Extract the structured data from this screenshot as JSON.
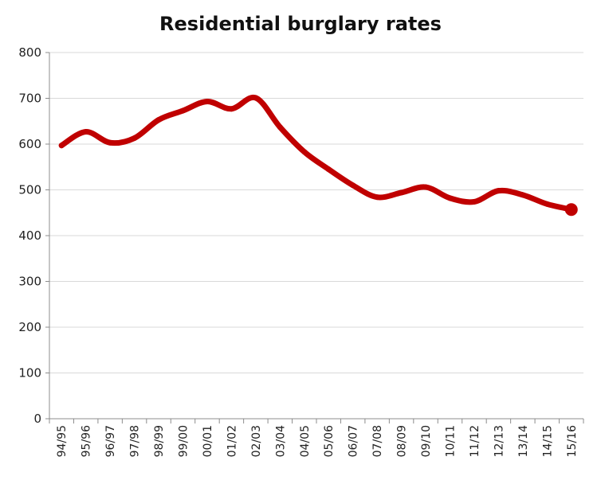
{
  "chart_data": {
    "type": "line",
    "title": "Residential burglary rates",
    "xlabel": "",
    "ylabel": "",
    "ylim": [
      0,
      800
    ],
    "yticks": [
      0,
      100,
      200,
      300,
      400,
      500,
      600,
      700,
      800
    ],
    "grid": true,
    "legend": "none",
    "line_color": "#c00000",
    "categories": [
      "94/95",
      "95/96",
      "96/97",
      "97/98",
      "98/99",
      "99/00",
      "00/01",
      "01/02",
      "02/03",
      "03/04",
      "04/05",
      "05/06",
      "06/07",
      "07/08",
      "08/09",
      "09/10",
      "10/11",
      "11/12",
      "12/13",
      "13/14",
      "14/15",
      "15/16"
    ],
    "series": [
      {
        "values": [
          597,
          627,
          603,
          613,
          653,
          673,
          693,
          677,
          701,
          637,
          583,
          545,
          510,
          484,
          494,
          506,
          482,
          474,
          498,
          489,
          469,
          457
        ]
      }
    ]
  }
}
